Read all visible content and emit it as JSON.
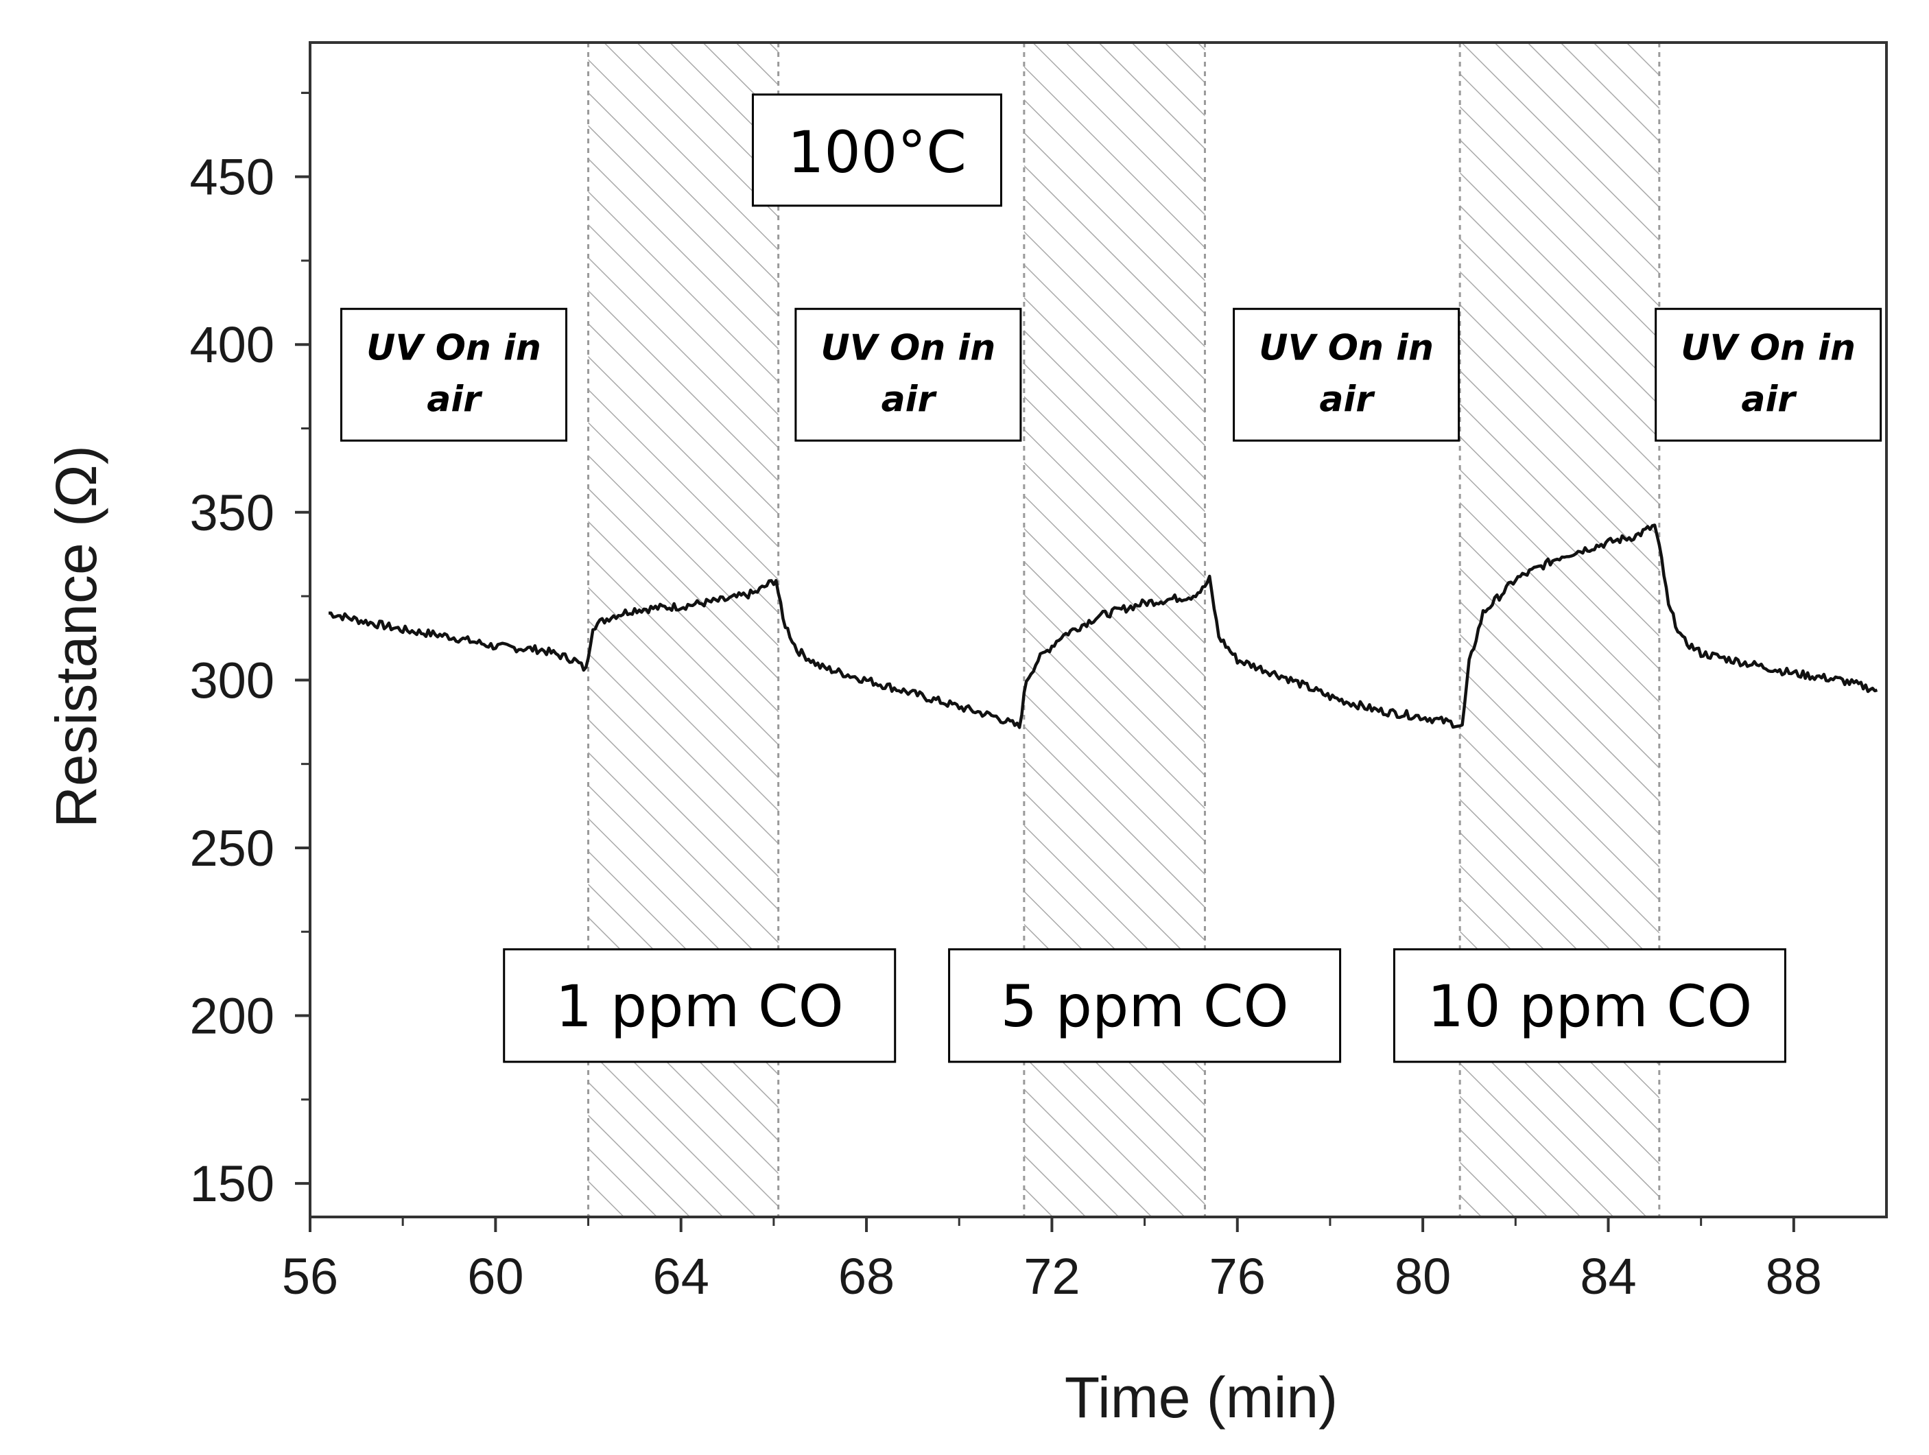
{
  "chart_data": {
    "type": "line",
    "title": "",
    "xlabel": "Time (min)",
    "ylabel": "Resistance (Ω)",
    "xlim": [
      56,
      90
    ],
    "ylim": [
      140,
      490
    ],
    "x_ticks": [
      56,
      60,
      64,
      68,
      72,
      76,
      80,
      84,
      88
    ],
    "y_ticks": [
      150,
      200,
      250,
      300,
      350,
      400,
      450
    ],
    "x_tick_labels": [
      "56",
      "60",
      "64",
      "68",
      "72",
      "76",
      "80",
      "84",
      "88"
    ],
    "y_tick_labels": [
      "150",
      "200",
      "250",
      "300",
      "350",
      "400",
      "450"
    ],
    "grid": false,
    "temperature_label": "100°C",
    "co_exposure_periods": [
      {
        "start": 62.0,
        "end": 66.1,
        "label": "1 ppm CO",
        "label_x": 64.4,
        "label_y": 203
      },
      {
        "start": 71.4,
        "end": 75.3,
        "label": "5 ppm CO",
        "label_x": 74.0,
        "label_y": 203
      },
      {
        "start": 80.8,
        "end": 85.1,
        "label": "10 ppm CO",
        "label_x": 83.6,
        "label_y": 203
      }
    ],
    "uv_annotations": [
      {
        "line1": "UV On in",
        "line2": "air",
        "x": 59.1,
        "y": 391
      },
      {
        "line1": "UV On in",
        "line2": "air",
        "x": 68.9,
        "y": 391
      },
      {
        "line1": "UV On in",
        "line2": "air",
        "x": 78.35,
        "y": 391
      },
      {
        "line1": "UV On in",
        "line2": "air",
        "x": 87.45,
        "y": 391
      }
    ],
    "series": [
      {
        "name": "Resistance",
        "color": "#111111",
        "x": [
          56.4,
          57.0,
          58.0,
          59.0,
          60.0,
          61.0,
          61.7,
          61.95,
          62.1,
          62.5,
          63.0,
          64.0,
          65.0,
          65.6,
          66.05,
          66.2,
          66.5,
          67.0,
          68.0,
          69.0,
          70.0,
          70.8,
          71.3,
          71.45,
          71.7,
          72.2,
          73.0,
          74.0,
          75.0,
          75.25,
          75.4,
          75.6,
          76.0,
          77.0,
          78.0,
          79.0,
          80.0,
          80.7,
          80.85,
          81.0,
          81.3,
          82.0,
          83.0,
          84.0,
          84.6,
          85.0,
          85.15,
          85.3,
          85.6,
          86.0,
          87.0,
          88.0,
          89.0,
          89.8
        ],
        "y": [
          320,
          318,
          315,
          313,
          310,
          309,
          306,
          303,
          316,
          319,
          321,
          322,
          324,
          326,
          330,
          318,
          309,
          304,
          300,
          296,
          292,
          289,
          286,
          300,
          306,
          313,
          319,
          323,
          325,
          327,
          330,
          313,
          306,
          301,
          295,
          291,
          289,
          287,
          286,
          305,
          320,
          330,
          337,
          341,
          343,
          346,
          336,
          322,
          312,
          308,
          305,
          302,
          300,
          297
        ]
      }
    ]
  }
}
